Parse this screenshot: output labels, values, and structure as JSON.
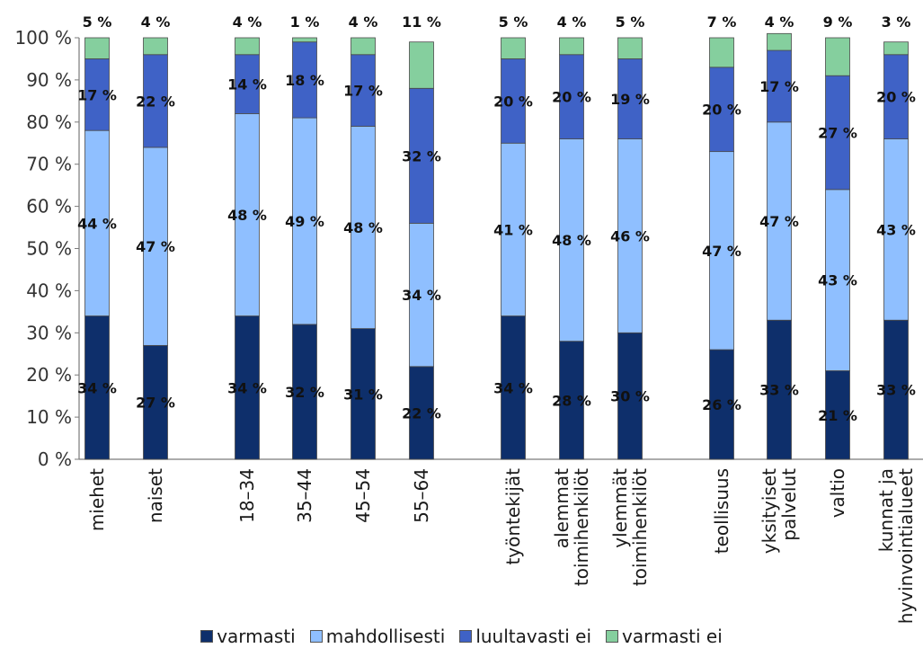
{
  "chart_data": {
    "type": "bar",
    "stacked": true,
    "y_tick_labels": [
      "0 %",
      "10 %",
      "20 %",
      "30 %",
      "40 %",
      "50 %",
      "60 %",
      "70 %",
      "80 %",
      "90 %",
      "100 %"
    ],
    "ylim": [
      0,
      100
    ],
    "grid": false,
    "legend_position": "bottom",
    "groups": [
      {
        "categories": [
          "miehet",
          "naiset"
        ]
      },
      {
        "categories": [
          "18–34",
          "35–44",
          "45–54",
          "55–64"
        ]
      },
      {
        "categories": [
          "työntekijät",
          "alemmat toimihenkilöt",
          "ylemmät toimihenkilöt"
        ]
      },
      {
        "categories": [
          "teollisuus",
          "yksityiset palvelut",
          "valtio",
          "kunnat ja hyvinvointialueet"
        ]
      }
    ],
    "categories": [
      "miehet",
      "naiset",
      "18–34",
      "35–44",
      "45–54",
      "55–64",
      "työntekijät",
      "alemmat toimihenkilöt",
      "ylemmät toimihenkilöt",
      "teollisuus",
      "yksityiset palvelut",
      "valtio",
      "kunnat ja hyvinvointialueet"
    ],
    "category_lines": [
      [
        "miehet"
      ],
      [
        "naiset"
      ],
      [
        "18–34"
      ],
      [
        "35–44"
      ],
      [
        "45–54"
      ],
      [
        "55–64"
      ],
      [
        "työntekijät"
      ],
      [
        "alemmat",
        "toimihenkilöt"
      ],
      [
        "ylemmät",
        "toimihenkilöt"
      ],
      [
        "teollisuus"
      ],
      [
        "yksityiset",
        "palvelut"
      ],
      [
        "valtio"
      ],
      [
        "kunnat ja",
        "hyvinvointialueet"
      ]
    ],
    "series": [
      {
        "name": "varmasti",
        "color": "#0e2f6b",
        "values": [
          34,
          27,
          34,
          32,
          31,
          22,
          34,
          28,
          30,
          26,
          33,
          21,
          33
        ]
      },
      {
        "name": "mahdollisesti",
        "color": "#8fbfff",
        "values": [
          44,
          47,
          48,
          49,
          48,
          34,
          41,
          48,
          46,
          47,
          47,
          43,
          43
        ]
      },
      {
        "name": "luultavasti ei",
        "color": "#3f62c6",
        "values": [
          17,
          22,
          14,
          18,
          17,
          32,
          20,
          20,
          19,
          20,
          17,
          27,
          20
        ]
      },
      {
        "name": "varmasti ei",
        "color": "#85cf9e",
        "values": [
          5,
          4,
          4,
          1,
          4,
          11,
          5,
          4,
          5,
          7,
          4,
          9,
          3
        ]
      }
    ],
    "value_labels": [
      [
        "34 %",
        "27 %",
        "34 %",
        "32 %",
        "31 %",
        "22 %",
        "34 %",
        "28 %",
        "30 %",
        "26 %",
        "33 %",
        "21 %",
        "33 %"
      ],
      [
        "44 %",
        "47 %",
        "48 %",
        "49 %",
        "48 %",
        "34 %",
        "41 %",
        "48 %",
        "46 %",
        "47 %",
        "47 %",
        "43 %",
        "43 %"
      ],
      [
        "17 %",
        "22 %",
        "14 %",
        "18 %",
        "17 %",
        "32 %",
        "20 %",
        "20 %",
        "19 %",
        "20 %",
        "17 %",
        "27 %",
        "20 %"
      ],
      [
        "5 %",
        "4 %",
        "4 %",
        "1 %",
        "4 %",
        "11 %",
        "5 %",
        "4 %",
        "5 %",
        "7 %",
        "4 %",
        "9 %",
        "3 %"
      ]
    ]
  }
}
